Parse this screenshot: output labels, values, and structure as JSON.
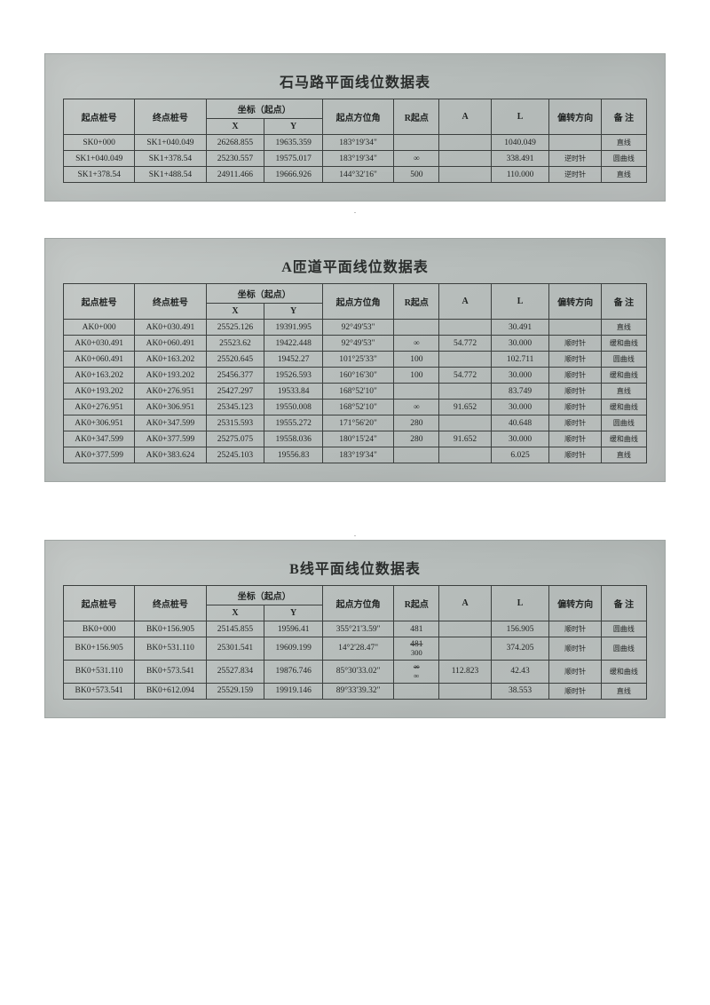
{
  "page": {
    "background_color": "#ffffff",
    "scan_bg_colors": [
      "#c6cac8",
      "#b9bfbd",
      "#b4bab8"
    ],
    "border_color": "#3b3f3e",
    "text_color": "#222524",
    "font_family": "SimSun",
    "title_fontsize": 16,
    "cell_fontsize": 9.5
  },
  "headers": {
    "start": "起点桩号",
    "end": "终点桩号",
    "coord_group": "坐标（起点）",
    "x": "X",
    "y": "Y",
    "azimuth": "起点方位角",
    "r": "R起点",
    "a": "A",
    "l": "L",
    "dir": "偏转方向",
    "note": "备 注"
  },
  "dir_labels": {
    "clockwise": "顺时针",
    "counter": "逆时针"
  },
  "note_labels": {
    "line": "直线",
    "arc": "圆曲线",
    "spiral": "缓和曲线"
  },
  "tables": [
    {
      "title": "石马路平面线位数据表",
      "rows": [
        {
          "start": "SK0+000",
          "end": "SK1+040.049",
          "x": "26268.855",
          "y": "19635.359",
          "az": "183°19'34\"",
          "r": "",
          "a": "",
          "l": "1040.049",
          "dir": "",
          "note_key": "line"
        },
        {
          "start": "SK1+040.049",
          "end": "SK1+378.54",
          "x": "25230.557",
          "y": "19575.017",
          "az": "183°19'34\"",
          "r": "∞",
          "a": "",
          "l": "338.491",
          "dir_key": "counter",
          "note_key": "arc"
        },
        {
          "start": "SK1+378.54",
          "end": "SK1+488.54",
          "x": "24911.466",
          "y": "19666.926",
          "az": "144°32'16\"",
          "r": "500",
          "a": "",
          "l": "110.000",
          "dir_key": "counter",
          "note_key": "line"
        }
      ]
    },
    {
      "title": "A匝道平面线位数据表",
      "rows": [
        {
          "start": "AK0+000",
          "end": "AK0+030.491",
          "x": "25525.126",
          "y": "19391.995",
          "az": "92°49'53\"",
          "r": "",
          "a": "",
          "l": "30.491",
          "dir": "",
          "note_key": "line"
        },
        {
          "start": "AK0+030.491",
          "end": "AK0+060.491",
          "x": "25523.62",
          "y": "19422.448",
          "az": "92°49'53\"",
          "r": "∞",
          "a": "54.772",
          "l": "30.000",
          "dir_key": "clockwise",
          "note_key": "spiral"
        },
        {
          "start": "AK0+060.491",
          "end": "AK0+163.202",
          "x": "25520.645",
          "y": "19452.27",
          "az": "101°25'33\"",
          "r": "100",
          "a": "",
          "l": "102.711",
          "dir_key": "clockwise",
          "note_key": "arc"
        },
        {
          "start": "AK0+163.202",
          "end": "AK0+193.202",
          "x": "25456.377",
          "y": "19526.593",
          "az": "160°16'30\"",
          "r": "100",
          "a": "54.772",
          "l": "30.000",
          "dir_key": "clockwise",
          "note_key": "spiral"
        },
        {
          "start": "AK0+193.202",
          "end": "AK0+276.951",
          "x": "25427.297",
          "y": "19533.84",
          "az": "168°52'10\"",
          "r": "",
          "a": "",
          "l": "83.749",
          "dir_key": "clockwise",
          "note_key": "line"
        },
        {
          "start": "AK0+276.951",
          "end": "AK0+306.951",
          "x": "25345.123",
          "y": "19550.008",
          "az": "168°52'10\"",
          "r": "∞",
          "a": "91.652",
          "l": "30.000",
          "dir_key": "clockwise",
          "note_key": "spiral"
        },
        {
          "start": "AK0+306.951",
          "end": "AK0+347.599",
          "x": "25315.593",
          "y": "19555.272",
          "az": "171°56'20\"",
          "r": "280",
          "a": "",
          "l": "40.648",
          "dir_key": "clockwise",
          "note_key": "arc"
        },
        {
          "start": "AK0+347.599",
          "end": "AK0+377.599",
          "x": "25275.075",
          "y": "19558.036",
          "az": "180°15'24\"",
          "r": "280",
          "a": "91.652",
          "l": "30.000",
          "dir_key": "clockwise",
          "note_key": "spiral"
        },
        {
          "start": "AK0+377.599",
          "end": "AK0+383.624",
          "x": "25245.103",
          "y": "19556.83",
          "az": "183°19'34\"",
          "r": "",
          "a": "",
          "l": "6.025",
          "dir_key": "clockwise",
          "note_key": "line"
        }
      ]
    },
    {
      "title": "B线平面线位数据表",
      "rows": [
        {
          "start": "BK0+000",
          "end": "BK0+156.905",
          "x": "25145.855",
          "y": "19596.41",
          "az": "355°21'3.59\"",
          "r": "481",
          "a": "",
          "l": "156.905",
          "dir_key": "clockwise",
          "note_key": "arc"
        },
        {
          "start": "BK0+156.905",
          "end": "BK0+531.110",
          "x": "25301.541",
          "y": "19609.199",
          "az": "14°2'28.47\"",
          "r_struck": "481",
          "r_hand": "300",
          "a": "",
          "l": "374.205",
          "dir_key": "clockwise",
          "note_key": "arc"
        },
        {
          "start": "BK0+531.110",
          "end": "BK0+573.541",
          "x": "25527.834",
          "y": "19876.746",
          "az": "85°30'33.02\"",
          "r_struck": "∞",
          "r_hand": "∞",
          "a": "112.823",
          "l": "42.43",
          "dir_key": "clockwise",
          "note_key": "spiral"
        },
        {
          "start": "BK0+573.541",
          "end": "BK0+612.094",
          "x": "25529.159",
          "y": "19919.146",
          "az": "89°33'39.32\"",
          "r": "",
          "a": "",
          "l": "38.553",
          "dir_key": "clockwise",
          "note_key": "line"
        }
      ]
    }
  ]
}
